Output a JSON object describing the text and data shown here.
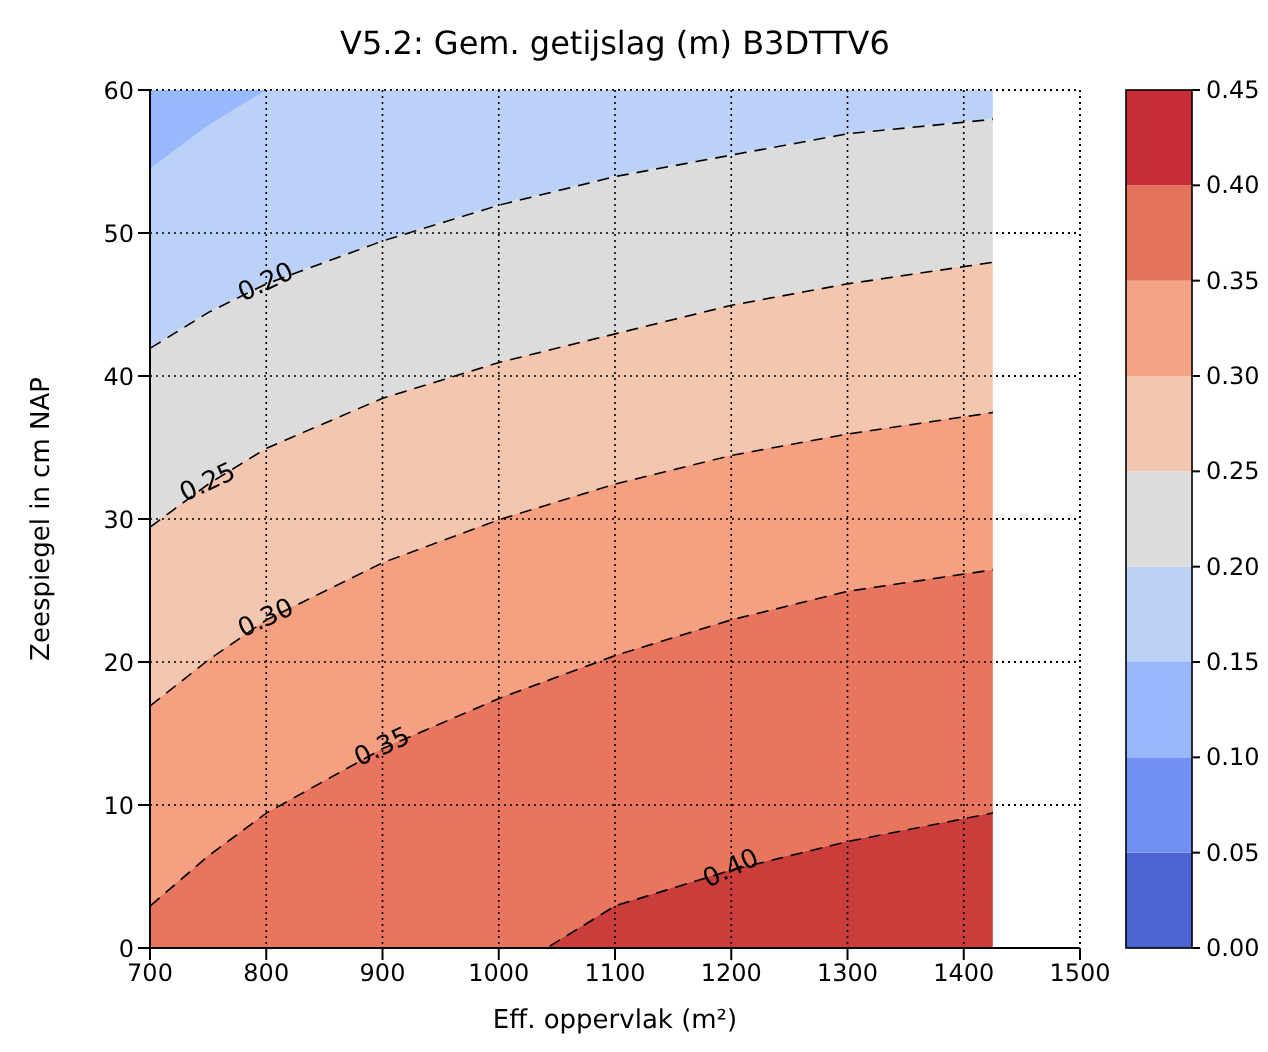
{
  "chart_data": {
    "type": "area",
    "title": "V5.2: Gem. getijslag (m) B3DTTV6",
    "xlabel": "Eff. oppervlak (m²)",
    "ylabel": "Zeespiegel in cm NAP",
    "x": [
      700,
      750,
      800,
      900,
      1000,
      1040,
      1100,
      1200,
      1300,
      1425
    ],
    "stacked": true,
    "series": [
      {
        "color": "#c93d3a",
        "line_style": "dashed",
        "values": [
          0,
          0,
          0,
          0,
          0,
          0,
          3,
          5.5,
          7.5,
          9.5
        ]
      },
      {
        "color": "#e8765e",
        "line_style": "dashed",
        "values": [
          3,
          6.5,
          9.5,
          14,
          17.5,
          18.7,
          17.5,
          17.5,
          17.5,
          17
        ]
      },
      {
        "color": "#f5a081",
        "line_style": "dashed",
        "values": [
          14,
          13.7,
          13.5,
          13,
          12.5,
          12.3,
          12,
          11.5,
          11,
          11
        ]
      },
      {
        "color": "#f3c6b0",
        "line_style": "dashed",
        "values": [
          12.5,
          12.3,
          12,
          11.5,
          11,
          10.8,
          10.5,
          10.5,
          10.5,
          10.5
        ]
      },
      {
        "color": "#dddcdc",
        "line_style": "dashed",
        "values": [
          12.5,
          12,
          11.5,
          11,
          11,
          11,
          11,
          10.5,
          10.5,
          10
        ]
      },
      {
        "color": "#bcd1f8",
        "values": [
          12.5,
          13,
          13.5,
          10.5,
          8,
          7.2,
          6,
          4.5,
          3,
          2
        ]
      },
      {
        "color": "#98b9fe",
        "values": [
          5.5,
          2.5,
          0,
          0,
          0,
          0,
          0,
          0,
          0,
          0
        ]
      }
    ],
    "xlim": [
      700,
      1500
    ],
    "xticks": [
      700,
      800,
      900,
      1000,
      1100,
      1200,
      1300,
      1400,
      1500
    ],
    "ylim": [
      0,
      60
    ],
    "yticks": [
      0,
      10,
      20,
      30,
      40,
      50,
      60
    ],
    "grid": true,
    "clim": [
      0,
      0.45
    ],
    "cticks": [
      {
        "value": 0,
        "label": "0.00"
      },
      {
        "value": 0.05,
        "label": "0.05"
      },
      {
        "value": 0.1,
        "label": "0.10"
      },
      {
        "value": 0.15,
        "label": "0.15"
      },
      {
        "value": 0.2,
        "label": "0.20"
      },
      {
        "value": 0.25,
        "label": "0.25"
      },
      {
        "value": 0.3,
        "label": "0.30"
      },
      {
        "value": 0.35,
        "label": "0.35"
      },
      {
        "value": 0.4,
        "label": "0.40"
      },
      {
        "value": 0.45,
        "label": "0.45"
      }
    ],
    "annotations": [
      {
        "text": "0.20",
        "x": 800,
        "y": 46.5
      },
      {
        "text": "0.25",
        "x": 750,
        "y": 32.5
      },
      {
        "text": "0.30",
        "x": 800,
        "y": 23
      },
      {
        "text": "0.35",
        "x": 900,
        "y": 14
      },
      {
        "text": "0.40",
        "x": 1200,
        "y": 5.5
      }
    ]
  }
}
